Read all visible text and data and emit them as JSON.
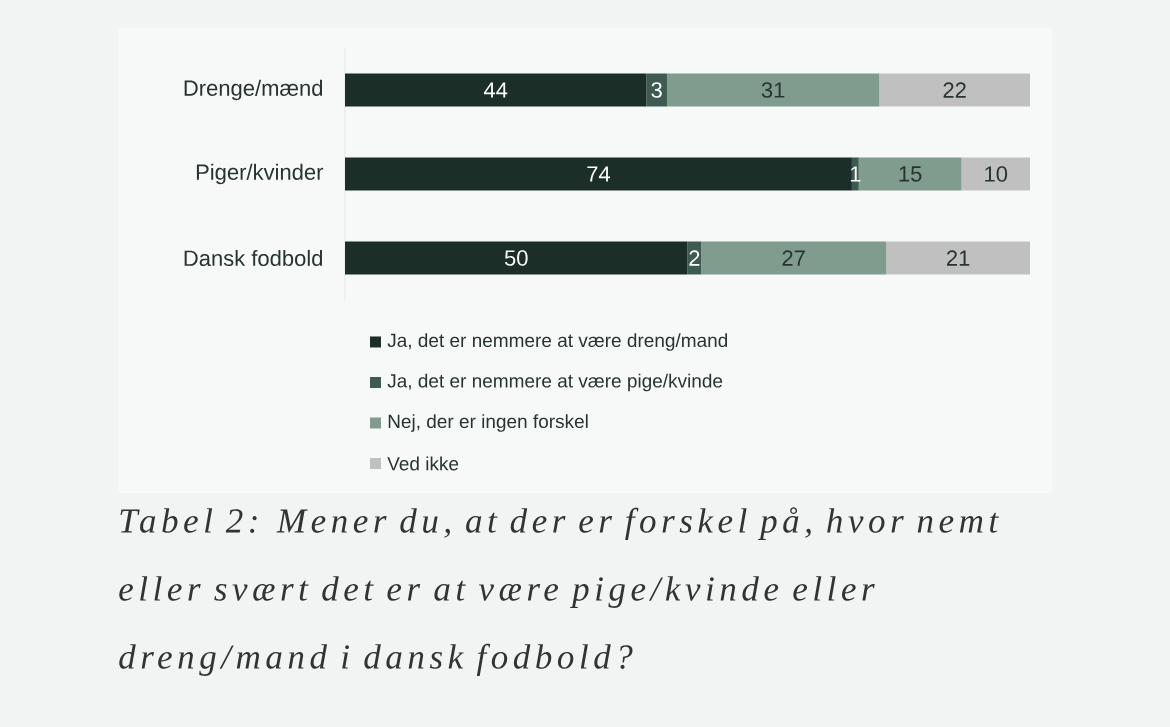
{
  "chart_data": {
    "type": "bar",
    "orientation": "horizontal",
    "stacked": true,
    "data_labels": true,
    "legend": "bottom",
    "categories": [
      "Drenge/mænd",
      "Piger/kvinder",
      "Dansk fodbold"
    ],
    "series": [
      {
        "name": "Ja, det er nemmere at være dreng/mand",
        "color": "#1b2e28",
        "values": [
          44,
          74,
          50
        ]
      },
      {
        "name": "Ja, det er nemmere at være pige/kvinde",
        "color": "#3f5a52",
        "values": [
          3,
          1,
          2
        ]
      },
      {
        "name": "Nej, der er ingen forskel",
        "color": "#7f9c8e",
        "values": [
          31,
          15,
          27
        ]
      },
      {
        "name": "Ved ikke",
        "color": "#c0c0c0",
        "values": [
          22,
          10,
          21
        ]
      }
    ],
    "annotations": [
      "Tabel 2: Mener du, at der er forskel på, hvor nemt eller svært det er at være pige/kvinde eller dreng/mand i dansk fodbold?"
    ]
  }
}
